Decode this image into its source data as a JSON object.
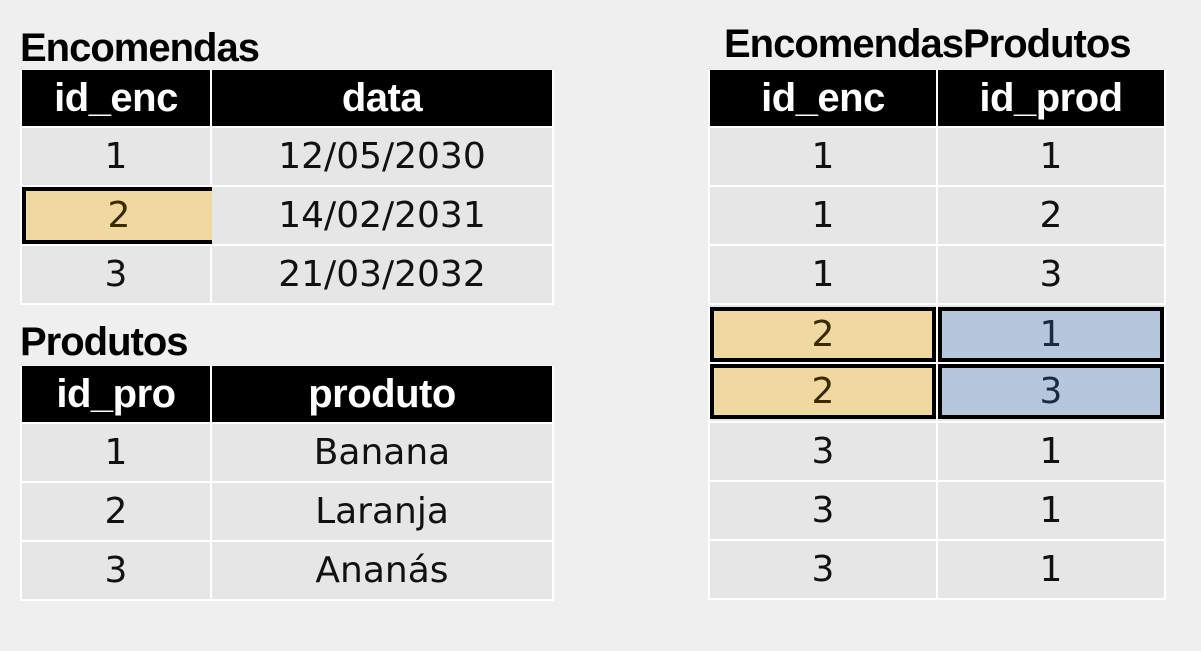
{
  "encomendas": {
    "title": "Encomendas",
    "columns": [
      "id_enc",
      "data"
    ],
    "rows": [
      {
        "id_enc": "1",
        "data": "12/05/2030"
      },
      {
        "id_enc": "2",
        "data": "14/02/2031"
      },
      {
        "id_enc": "3",
        "data": "21/03/2032"
      }
    ]
  },
  "produtos": {
    "title": "Produtos",
    "columns": [
      "id_pro",
      "produto"
    ],
    "rows": [
      {
        "id_pro": "1",
        "produto": "Banana"
      },
      {
        "id_pro": "2",
        "produto": "Laranja"
      },
      {
        "id_pro": "3",
        "produto": "Ananás"
      }
    ]
  },
  "encomendas_produtos": {
    "title": "EncomendasProdutos",
    "columns": [
      "id_enc",
      "id_prod"
    ],
    "rows": [
      {
        "id_enc": "1",
        "id_prod": "1"
      },
      {
        "id_enc": "1",
        "id_prod": "2"
      },
      {
        "id_enc": "1",
        "id_prod": "3"
      },
      {
        "id_enc": "2",
        "id_prod": "1"
      },
      {
        "id_enc": "2",
        "id_prod": "3"
      },
      {
        "id_enc": "3",
        "id_prod": "1"
      },
      {
        "id_enc": "3",
        "id_prod": "1"
      },
      {
        "id_enc": "3",
        "id_prod": "1"
      }
    ]
  },
  "colors": {
    "header_bg": "#000000",
    "cell_bg": "#e6e6e6",
    "highlight_order": "#efd9a0",
    "highlight_product": "#b5c7dc"
  }
}
